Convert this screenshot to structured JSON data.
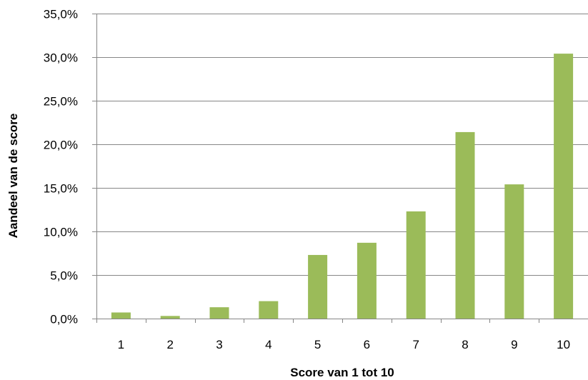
{
  "colors": {
    "bar": "#9BBB59",
    "gridline": "#868686",
    "axis": "#868686",
    "text": "#000000",
    "background": "#FFFFFF"
  },
  "chart_data": {
    "type": "bar",
    "title": "",
    "xlabel": "Score van 1 tot 10",
    "ylabel": "Aandeel van de score",
    "categories": [
      "1",
      "2",
      "3",
      "4",
      "5",
      "6",
      "7",
      "8",
      "9",
      "10"
    ],
    "values": [
      0.7,
      0.3,
      1.3,
      2.0,
      7.3,
      8.7,
      12.3,
      21.4,
      15.4,
      30.4
    ],
    "value_unit": "percent",
    "ylim": [
      0,
      35
    ],
    "y_ticks": [
      0,
      5,
      10,
      15,
      20,
      25,
      30,
      35
    ],
    "y_tick_labels": [
      "0,0%",
      "5,0%",
      "10,0%",
      "15,0%",
      "20,0%",
      "25,0%",
      "30,0%",
      "35,0%"
    ],
    "grid": true,
    "legend": "none"
  }
}
